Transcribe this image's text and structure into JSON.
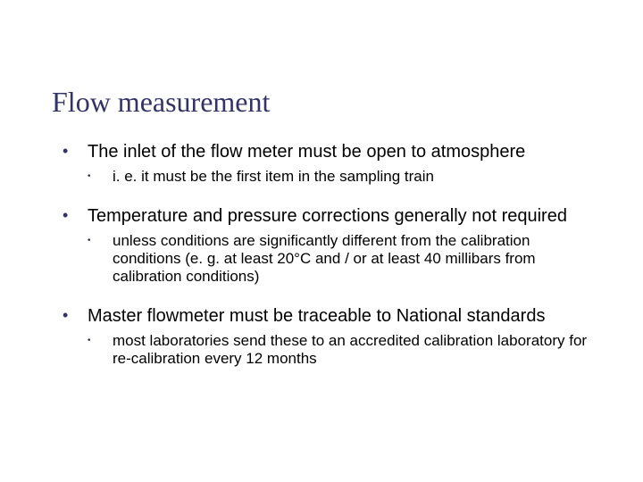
{
  "colors": {
    "title": "#333366",
    "bullet": "#333366",
    "body_text": "#000000",
    "background": "#ffffff"
  },
  "typography": {
    "title_font": "Times New Roman",
    "title_size_pt": 32,
    "body_font": "Arial",
    "l1_size_pt": 20,
    "l2_size_pt": 17
  },
  "title": "Flow measurement",
  "bullets": [
    {
      "text": "The inlet of the flow meter must be open to atmosphere",
      "sub": [
        {
          "text": "i. e. it must be the first item in the sampling train"
        }
      ]
    },
    {
      "text": "Temperature and pressure corrections generally not required",
      "sub": [
        {
          "text": "unless conditions are significantly different from the calibration conditions (e. g. at least 20°C and / or at least 40 millibars from calibration conditions)"
        }
      ]
    },
    {
      "text": "Master flowmeter must be traceable to National standards",
      "sub": [
        {
          "text": "most laboratories send these to an accredited calibration laboratory for re-calibration every 12 months"
        }
      ]
    }
  ]
}
